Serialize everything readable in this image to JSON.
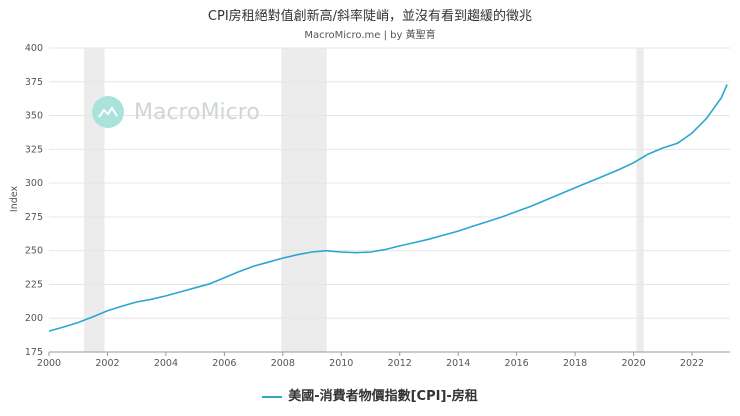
{
  "header": {
    "title": "CPI房租絕對值創新高/斜率陡峭，並沒有看到趨緩的徵兆",
    "subtitle": "MacroMicro.me | by 黃聖育"
  },
  "watermark": {
    "text": "MacroMicro",
    "icon": "macromicro-logo-icon"
  },
  "legend": {
    "label": "美國-消費者物價指數[CPI]-房租"
  },
  "colors": {
    "line": "#2aa7cf",
    "recession": "#ececec",
    "grid": "#e6e6e6"
  },
  "chart_data": {
    "type": "line",
    "title": "CPI房租絕對值創新高/斜率陡峭，並沒有看到趨緩的徵兆",
    "subtitle": "MacroMicro.me | by 黃聖育",
    "ylabel": "Index",
    "xlabel": "",
    "xlim": [
      2000,
      2023.3
    ],
    "ylim": [
      175,
      400
    ],
    "yticks": [
      175,
      200,
      225,
      250,
      275,
      300,
      325,
      350,
      375,
      400
    ],
    "xticks": [
      2000,
      2002,
      2004,
      2006,
      2008,
      2010,
      2012,
      2014,
      2016,
      2018,
      2020,
      2022
    ],
    "grid": true,
    "legend_position": "bottom",
    "shaded_periods": [
      [
        2001.2,
        2001.9
      ],
      [
        2007.95,
        2009.5
      ],
      [
        2020.1,
        2020.35
      ]
    ],
    "series": [
      {
        "name": "美國-消費者物價指數[CPI]-房租",
        "x": [
          2000.0,
          2000.5,
          2001.0,
          2001.5,
          2002.0,
          2002.5,
          2003.0,
          2003.5,
          2004.0,
          2004.5,
          2005.0,
          2005.5,
          2006.0,
          2006.5,
          2007.0,
          2007.5,
          2008.0,
          2008.5,
          2009.0,
          2009.5,
          2009.7,
          2010.0,
          2010.5,
          2011.0,
          2011.5,
          2012.0,
          2012.5,
          2013.0,
          2013.5,
          2014.0,
          2014.5,
          2015.0,
          2015.5,
          2016.0,
          2016.5,
          2017.0,
          2017.5,
          2018.0,
          2018.5,
          2019.0,
          2019.5,
          2020.0,
          2020.5,
          2021.0,
          2021.5,
          2022.0,
          2022.5,
          2023.0,
          2023.2
        ],
        "values": [
          190.5,
          193.5,
          196.8,
          201.0,
          205.5,
          209.0,
          212.0,
          214.0,
          216.5,
          219.5,
          222.5,
          225.5,
          230.0,
          234.5,
          238.5,
          241.5,
          244.5,
          247.0,
          249.0,
          250.0,
          249.5,
          249.0,
          248.5,
          249.0,
          250.8,
          253.5,
          256.0,
          258.5,
          261.5,
          264.5,
          268.0,
          271.5,
          275.0,
          279.0,
          283.0,
          287.5,
          292.0,
          296.5,
          301.0,
          305.5,
          310.0,
          315.0,
          321.5,
          326.0,
          329.5,
          337.0,
          348.0,
          363.0,
          373.0
        ]
      }
    ]
  }
}
